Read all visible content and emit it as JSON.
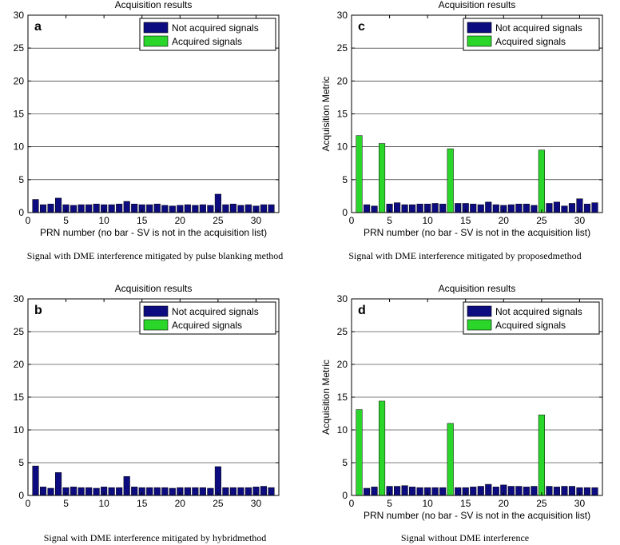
{
  "colors": {
    "not_acquired": "#0c0c80",
    "acquired": "#2bd62b",
    "grid": "#000000"
  },
  "chart_data": [
    {
      "type": "bar",
      "panel_label": "a",
      "title": "Acquisition results",
      "xlabel": "PRN number (no bar - SV is not in the acquisition list)",
      "ylabel": "",
      "caption": "Signal with DME interference mitigated by pulse blanking method",
      "xlim": [
        0,
        33
      ],
      "ylim": [
        0,
        30
      ],
      "xticks": [
        0,
        5,
        10,
        15,
        20,
        25,
        30
      ],
      "yticks": [
        0,
        5,
        10,
        15,
        20,
        25,
        30
      ],
      "grid_y": true,
      "legend": {
        "position": "top-right",
        "entries": [
          "Not acquired signals",
          "Acquired signals"
        ]
      },
      "series": [
        {
          "name": "Not acquired signals",
          "x": [
            1,
            2,
            3,
            4,
            5,
            6,
            7,
            8,
            9,
            10,
            11,
            12,
            13,
            14,
            15,
            16,
            17,
            18,
            19,
            20,
            21,
            22,
            23,
            24,
            25,
            26,
            27,
            28,
            29,
            30,
            31,
            32
          ],
          "values": [
            2.0,
            1.2,
            1.3,
            2.2,
            1.2,
            1.1,
            1.2,
            1.2,
            1.3,
            1.2,
            1.2,
            1.3,
            1.7,
            1.3,
            1.2,
            1.2,
            1.3,
            1.1,
            1.0,
            1.1,
            1.2,
            1.1,
            1.2,
            1.1,
            2.8,
            1.2,
            1.3,
            1.1,
            1.2,
            1.0,
            1.2,
            1.2
          ]
        },
        {
          "name": "Acquired signals",
          "x": [],
          "values": []
        }
      ]
    },
    {
      "type": "bar",
      "panel_label": "c",
      "title": "Acquisition results",
      "xlabel": "PRN number (no bar - SV is not in the acquisition list)",
      "ylabel": "Acquisition Metric",
      "caption": "Signal with DME interference mitigated by proposedmethod",
      "xlim": [
        0,
        33
      ],
      "ylim": [
        0,
        30
      ],
      "xticks": [
        0,
        5,
        10,
        15,
        20,
        25,
        30
      ],
      "yticks": [
        0,
        5,
        10,
        15,
        20,
        25,
        30
      ],
      "grid_y": true,
      "legend": {
        "position": "top-right",
        "entries": [
          "Not acquired signals",
          "Acquired signals"
        ]
      },
      "series": [
        {
          "name": "Not acquired signals",
          "x": [
            2,
            3,
            5,
            6,
            7,
            8,
            9,
            10,
            11,
            12,
            14,
            15,
            16,
            17,
            18,
            19,
            20,
            21,
            22,
            23,
            24,
            26,
            27,
            28,
            29,
            30,
            31,
            32
          ],
          "values": [
            1.2,
            1.0,
            1.3,
            1.5,
            1.2,
            1.2,
            1.3,
            1.3,
            1.4,
            1.3,
            1.4,
            1.4,
            1.3,
            1.2,
            1.6,
            1.2,
            1.1,
            1.2,
            1.3,
            1.3,
            1.1,
            1.4,
            1.6,
            1.0,
            1.4,
            2.1,
            1.3,
            1.5
          ]
        },
        {
          "name": "Acquired signals",
          "x": [
            1,
            4,
            13,
            25
          ],
          "values": [
            11.7,
            10.5,
            9.7,
            9.5
          ]
        }
      ]
    },
    {
      "type": "bar",
      "panel_label": "b",
      "title": "Acquisition results",
      "xlabel": "",
      "ylabel": "",
      "caption": "Signal with DME interference mitigated by hybridmethod",
      "xlim": [
        0,
        33
      ],
      "ylim": [
        0,
        30
      ],
      "xticks": [
        0,
        5,
        10,
        15,
        20,
        25,
        30
      ],
      "yticks": [
        0,
        5,
        10,
        15,
        20,
        25,
        30
      ],
      "grid_y": true,
      "legend": {
        "position": "top-right",
        "entries": [
          "Not acquired signals",
          "Acquired signals"
        ]
      },
      "series": [
        {
          "name": "Not acquired signals",
          "x": [
            1,
            2,
            3,
            4,
            5,
            6,
            7,
            8,
            9,
            10,
            11,
            12,
            13,
            14,
            15,
            16,
            17,
            18,
            19,
            20,
            21,
            22,
            23,
            24,
            25,
            26,
            27,
            28,
            29,
            30,
            31,
            32
          ],
          "values": [
            4.5,
            1.3,
            1.1,
            3.5,
            1.2,
            1.3,
            1.2,
            1.2,
            1.1,
            1.3,
            1.2,
            1.2,
            2.9,
            1.3,
            1.2,
            1.2,
            1.2,
            1.2,
            1.1,
            1.2,
            1.2,
            1.2,
            1.2,
            1.1,
            4.4,
            1.2,
            1.2,
            1.2,
            1.2,
            1.3,
            1.4,
            1.2
          ]
        },
        {
          "name": "Acquired signals",
          "x": [],
          "values": []
        }
      ]
    },
    {
      "type": "bar",
      "panel_label": "d",
      "title": "Acquisition results",
      "xlabel": "PRN number (no bar - SV is not in the acquisition list)",
      "ylabel": "Acquisition Metric",
      "caption": "Signal without DME interference",
      "xlim": [
        0,
        33
      ],
      "ylim": [
        0,
        30
      ],
      "xticks": [
        0,
        5,
        10,
        15,
        20,
        25,
        30
      ],
      "yticks": [
        0,
        5,
        10,
        15,
        20,
        25,
        30
      ],
      "grid_y": true,
      "legend": {
        "position": "top-right",
        "entries": [
          "Not acquired signals",
          "Acquired signals"
        ]
      },
      "series": [
        {
          "name": "Not acquired signals",
          "x": [
            2,
            3,
            5,
            6,
            7,
            8,
            9,
            10,
            11,
            12,
            14,
            15,
            16,
            17,
            18,
            19,
            20,
            21,
            22,
            23,
            24,
            26,
            27,
            28,
            29,
            30,
            31,
            32
          ],
          "values": [
            1.1,
            1.3,
            1.4,
            1.4,
            1.5,
            1.3,
            1.2,
            1.2,
            1.2,
            1.2,
            1.2,
            1.2,
            1.3,
            1.4,
            1.7,
            1.3,
            1.6,
            1.4,
            1.4,
            1.3,
            1.4,
            1.4,
            1.3,
            1.4,
            1.4,
            1.2,
            1.2,
            1.2
          ]
        },
        {
          "name": "Acquired signals",
          "x": [
            1,
            4,
            13,
            25
          ],
          "values": [
            13.1,
            14.4,
            11.0,
            12.3
          ]
        }
      ]
    }
  ]
}
